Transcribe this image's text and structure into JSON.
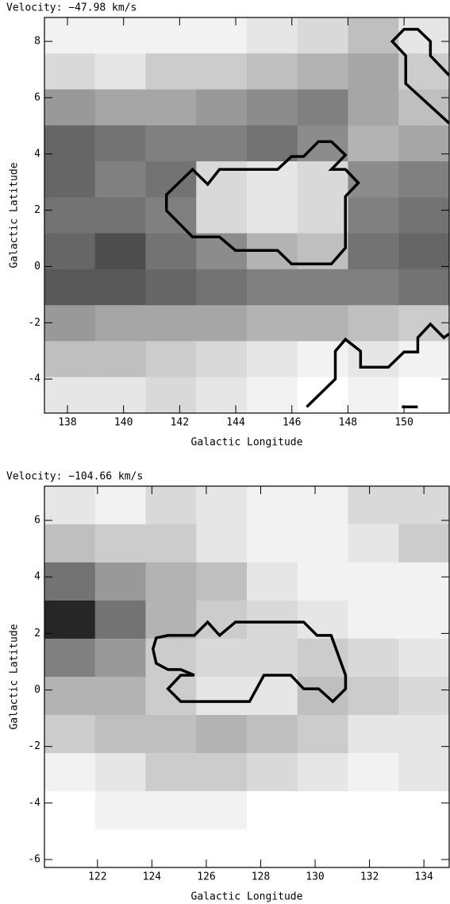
{
  "chart_data": [
    {
      "type": "heatmap",
      "title": "Velocity: −47.98 km/s",
      "x_label": "Galactic Longitude",
      "y_label": "Galactic Latitude",
      "xlim": [
        137.18,
        151.61
      ],
      "ylim": [
        -5.21,
        8.85
      ],
      "xticks": [
        138,
        140,
        142,
        144,
        146,
        148,
        150
      ],
      "yticks": [
        -4,
        -2,
        0,
        2,
        4,
        6,
        8
      ],
      "z": [
        [
          0.05,
          0.05,
          0.05,
          0.05,
          0.1,
          0.15,
          0.25,
          0.1
        ],
        [
          0.15,
          0.1,
          0.2,
          0.2,
          0.25,
          0.3,
          0.35,
          0.2
        ],
        [
          0.4,
          0.35,
          0.35,
          0.4,
          0.45,
          0.5,
          0.35,
          0.25
        ],
        [
          0.6,
          0.55,
          0.5,
          0.5,
          0.55,
          0.45,
          0.3,
          0.35
        ],
        [
          0.6,
          0.5,
          0.55,
          0.15,
          0.1,
          0.15,
          0.45,
          0.5
        ],
        [
          0.55,
          0.55,
          0.5,
          0.15,
          0.1,
          0.15,
          0.5,
          0.55
        ],
        [
          0.6,
          0.7,
          0.55,
          0.45,
          0.3,
          0.25,
          0.55,
          0.6
        ],
        [
          0.65,
          0.65,
          0.6,
          0.55,
          0.5,
          0.5,
          0.5,
          0.55
        ],
        [
          0.4,
          0.35,
          0.35,
          0.35,
          0.3,
          0.3,
          0.25,
          0.2
        ],
        [
          0.25,
          0.25,
          0.2,
          0.15,
          0.1,
          0.05,
          0.1,
          0.05
        ],
        [
          0.1,
          0.1,
          0.15,
          0.1,
          0.05,
          0.0,
          0.05,
          0.0
        ]
      ],
      "contours": [
        {
          "closed": true,
          "x": [
            141.53,
            142.46,
            143.0,
            143.42,
            145.49,
            145.99,
            146.42,
            146.95,
            147.41,
            147.91,
            147.41,
            147.91,
            148.37,
            147.91,
            147.91,
            147.41,
            145.99,
            145.49,
            143.99,
            143.42,
            142.46,
            141.53
          ],
          "y": [
            2.55,
            3.45,
            2.92,
            3.45,
            3.45,
            3.91,
            3.91,
            4.44,
            4.44,
            3.96,
            3.45,
            3.45,
            2.97,
            2.49,
            0.66,
            0.09,
            0.09,
            0.57,
            0.57,
            1.05,
            1.05,
            1.99
          ]
        },
        {
          "closed": false,
          "x": [
            151.61,
            150.06,
            150.06,
            149.58,
            150.0,
            150.49,
            150.94,
            150.94,
            151.61
          ],
          "y": [
            5.09,
            6.5,
            7.49,
            8.0,
            8.43,
            8.43,
            8.0,
            7.49,
            6.79
          ]
        },
        {
          "closed": false,
          "x": [
            146.53,
            147.55,
            147.55,
            147.91,
            148.45,
            148.45,
            149.44,
            150.0,
            150.49,
            150.49,
            150.94,
            151.42,
            151.61
          ],
          "y": [
            -4.99,
            -4.0,
            -3.01,
            -2.59,
            -3.01,
            -3.58,
            -3.58,
            -3.04,
            -3.04,
            -2.53,
            -2.05,
            -2.53,
            -2.39
          ]
        },
        {
          "closed": false,
          "x": [
            149.92,
            150.49
          ],
          "y": [
            -4.99,
            -4.99
          ]
        }
      ]
    },
    {
      "type": "heatmap",
      "title": "Velocity: −104.66 km/s",
      "x_label": "Galactic Longitude",
      "y_label": "Galactic Latitude",
      "xlim": [
        120.05,
        134.93
      ],
      "ylim": [
        -6.28,
        7.21
      ],
      "xticks": [
        122,
        124,
        126,
        128,
        130,
        132,
        134
      ],
      "yticks": [
        -6,
        -4,
        -2,
        0,
        2,
        4,
        6
      ],
      "z": [
        [
          0.1,
          0.05,
          0.15,
          0.1,
          0.05,
          0.05,
          0.15,
          0.15
        ],
        [
          0.25,
          0.2,
          0.2,
          0.1,
          0.05,
          0.05,
          0.1,
          0.2
        ],
        [
          0.55,
          0.4,
          0.3,
          0.25,
          0.1,
          0.05,
          0.05,
          0.05
        ],
        [
          0.85,
          0.55,
          0.3,
          0.2,
          0.15,
          0.1,
          0.05,
          0.05
        ],
        [
          0.5,
          0.4,
          0.2,
          0.15,
          0.15,
          0.2,
          0.15,
          0.1
        ],
        [
          0.3,
          0.3,
          0.2,
          0.1,
          0.1,
          0.25,
          0.2,
          0.15
        ],
        [
          0.2,
          0.25,
          0.25,
          0.3,
          0.25,
          0.2,
          0.1,
          0.1
        ],
        [
          0.05,
          0.1,
          0.2,
          0.2,
          0.15,
          0.1,
          0.05,
          0.1
        ],
        [
          0.0,
          0.05,
          0.05,
          0.05,
          0.0,
          0.0,
          0.0,
          0.0
        ],
        [
          0.0,
          0.0,
          0.0,
          0.0,
          0.0,
          0.0,
          0.0,
          0.0
        ]
      ],
      "contours": [
        {
          "closed": true,
          "x": [
            124.16,
            124.59,
            125.56,
            126.05,
            126.49,
            127.07,
            129.58,
            130.07,
            130.59,
            131.12,
            131.12,
            130.65,
            130.13,
            129.58,
            129.11,
            128.12,
            127.59,
            125.06,
            124.59,
            125.06,
            125.56,
            125.06,
            124.59,
            124.16,
            124.04
          ],
          "y": [
            1.84,
            1.93,
            1.93,
            2.4,
            1.93,
            2.4,
            2.4,
            1.93,
            1.93,
            0.52,
            0.04,
            -0.41,
            0.04,
            0.04,
            0.52,
            0.52,
            -0.41,
            -0.41,
            0.04,
            0.52,
            0.52,
            0.72,
            0.72,
            0.94,
            1.45
          ]
        }
      ]
    }
  ]
}
